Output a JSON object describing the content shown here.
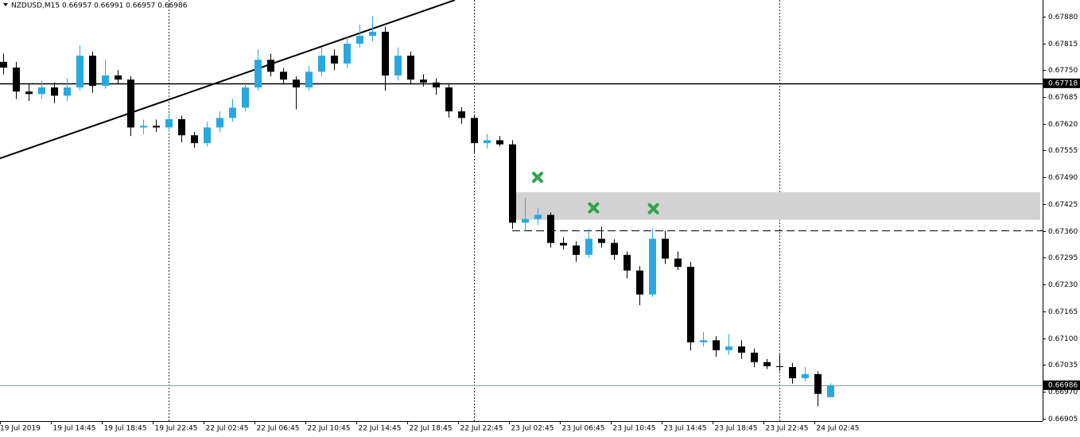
{
  "chart_data": {
    "type": "candlestick",
    "title": "NZDUSD,M15  0.66957 0.66991 0.66957 0.66986",
    "categories": [
      "19 Jul 2019",
      null,
      null,
      null,
      "19 Jul 14:45",
      null,
      null,
      null,
      "19 Jul 18:45",
      null,
      null,
      null,
      "19 Jul 22:45",
      null,
      null,
      null,
      "22 Jul 02:45",
      null,
      null,
      null,
      "22 Jul 06:45",
      null,
      null,
      null,
      "22 Jul 10:45",
      null,
      null,
      null,
      "22 Jul 14:45",
      null,
      null,
      null,
      "22 Jul 18:45",
      null,
      null,
      null,
      "22 Jul 22:45",
      null,
      null,
      null,
      "23 Jul 02:45",
      null,
      null,
      null,
      "23 Jul 06:45",
      null,
      null,
      null,
      "23 Jul 10:45",
      null,
      null,
      null,
      "23 Jul 14:45",
      null,
      null,
      null,
      "23 Jul 18:45",
      null,
      null,
      null,
      "23 Jul 22:45",
      null,
      null,
      null,
      "24 Jul 02:45",
      null
    ],
    "open": [
      0.6777,
      0.67756,
      0.67698,
      0.67692,
      0.67708,
      0.67688,
      0.67708,
      0.67785,
      0.67712,
      0.67737,
      0.67727,
      0.67611,
      0.67615,
      0.67611,
      0.67631,
      0.67592,
      0.67573,
      0.67611,
      0.67634,
      0.67659,
      0.67708,
      0.67775,
      0.67746,
      0.67727,
      0.67708,
      0.67746,
      0.67785,
      0.67766,
      0.67814,
      0.67833,
      0.67843,
      0.67737,
      0.67785,
      0.67727,
      0.6772,
      0.67708,
      0.6765,
      0.67634,
      0.67573,
      0.6758,
      0.6757,
      0.6738,
      0.67389,
      0.67399,
      0.67331,
      0.67325,
      0.67302,
      0.67341,
      0.67331,
      0.67302,
      0.67264,
      0.67206,
      0.67341,
      0.67293,
      0.67273,
      0.6709,
      0.67095,
      0.67071,
      0.6708,
      0.67065,
      0.67042,
      0.67032,
      0.6703,
      0.67003,
      0.67013,
      0.66957
    ],
    "high": [
      0.6779,
      0.6777,
      0.67715,
      0.67725,
      0.6772,
      0.6773,
      0.6781,
      0.67795,
      0.67775,
      0.6775,
      0.67735,
      0.6763,
      0.6763,
      0.67645,
      0.6764,
      0.676,
      0.67625,
      0.6765,
      0.6768,
      0.6772,
      0.678,
      0.6779,
      0.67755,
      0.67735,
      0.6776,
      0.67805,
      0.678,
      0.6783,
      0.6786,
      0.6788,
      0.67855,
      0.67805,
      0.67795,
      0.6774,
      0.6773,
      0.67715,
      0.6766,
      0.6764,
      0.67595,
      0.6759,
      0.6758,
      0.6744,
      0.67415,
      0.67405,
      0.67345,
      0.67335,
      0.67365,
      0.6737,
      0.6734,
      0.6731,
      0.67275,
      0.67365,
      0.6736,
      0.6731,
      0.67285,
      0.67115,
      0.67105,
      0.6711,
      0.67095,
      0.67075,
      0.6705,
      0.6706,
      0.6704,
      0.6703,
      0.6702,
      0.66991
    ],
    "low": [
      0.6774,
      0.6768,
      0.67675,
      0.6768,
      0.6767,
      0.67675,
      0.677,
      0.67695,
      0.67705,
      0.67715,
      0.6759,
      0.67595,
      0.676,
      0.676,
      0.67575,
      0.67562,
      0.67565,
      0.676,
      0.67625,
      0.6765,
      0.677,
      0.67735,
      0.67715,
      0.67655,
      0.677,
      0.67735,
      0.6775,
      0.67755,
      0.67805,
      0.6782,
      0.677,
      0.67725,
      0.67715,
      0.6771,
      0.6769,
      0.67635,
      0.6762,
      0.6755,
      0.6756,
      0.67565,
      0.67365,
      0.6736,
      0.67375,
      0.6732,
      0.67315,
      0.67285,
      0.67295,
      0.6732,
      0.6729,
      0.67245,
      0.6718,
      0.672,
      0.6728,
      0.67265,
      0.6707,
      0.6708,
      0.67055,
      0.6706,
      0.6705,
      0.6703,
      0.67025,
      0.6702,
      0.6699,
      0.66995,
      0.66935,
      0.66957
    ],
    "close": [
      0.67756,
      0.67698,
      0.67692,
      0.67708,
      0.67688,
      0.67708,
      0.67785,
      0.67712,
      0.67737,
      0.67727,
      0.67611,
      0.67615,
      0.67611,
      0.67631,
      0.67592,
      0.67573,
      0.67611,
      0.67634,
      0.67659,
      0.67708,
      0.67775,
      0.67746,
      0.67727,
      0.67708,
      0.67746,
      0.67785,
      0.67766,
      0.67814,
      0.67833,
      0.67843,
      0.67737,
      0.67785,
      0.67727,
      0.6772,
      0.67708,
      0.6765,
      0.67634,
      0.67573,
      0.6758,
      0.6757,
      0.6738,
      0.67389,
      0.67399,
      0.67331,
      0.67325,
      0.67302,
      0.67341,
      0.67331,
      0.67302,
      0.67264,
      0.67206,
      0.67341,
      0.67293,
      0.67273,
      0.6709,
      0.67095,
      0.67071,
      0.6708,
      0.67065,
      0.67042,
      0.67032,
      0.6703,
      0.67003,
      0.67013,
      0.66965,
      0.66986
    ],
    "bull_color": "#29a8e0",
    "bear_color": "#000000",
    "ylim": [
      0.66899,
      0.6792
    ],
    "yticks": [
      {
        "value": 0.6788,
        "label": "0.67880"
      },
      0.67815,
      {
        "value": 0.6775,
        "label": "0.67750"
      },
      0.67685,
      {
        "value": 0.6762,
        "label": "0.67620"
      },
      0.67555,
      {
        "value": 0.6749,
        "label": "0.67490"
      },
      0.67425,
      {
        "value": 0.6736,
        "label": "0.67360"
      },
      0.67295,
      {
        "value": 0.6723,
        "label": "0.67230"
      },
      0.67165,
      {
        "value": 0.671,
        "label": "0.67100"
      },
      0.67035,
      {
        "value": 0.6697,
        "label": "0.66970"
      },
      0.66905
    ],
    "separators": [
      13,
      37,
      61
    ],
    "hline": {
      "value": 0.67718,
      "color": "#000000"
    },
    "last_price": {
      "value": 0.66986,
      "color": "#7fa596"
    },
    "zone": {
      "x_from": 40,
      "ylim": [
        0.67387,
        0.67454
      ],
      "color": "#d3d3d3"
    },
    "dashed_level": {
      "x_from": 40,
      "value": 0.67362
    },
    "trendline": {
      "x": [
        -0.25,
        35.5
      ],
      "y": [
        0.67536,
        0.6792
      ]
    },
    "markers": {
      "x": [
        42,
        46.4,
        51.1
      ],
      "y": [
        0.6749,
        0.67416,
        0.67414
      ],
      "color": "#2ea44f"
    }
  }
}
